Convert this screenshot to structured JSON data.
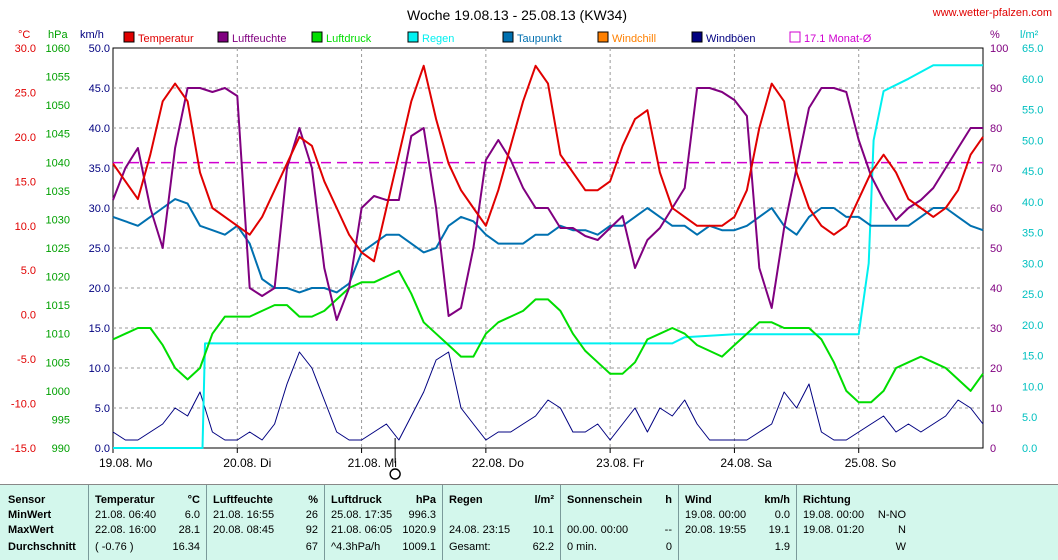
{
  "header": {
    "title": "Woche 19.08.13 - 25.08.13 (KW34)",
    "site": "www.wetter-pfalzen.com"
  },
  "units": {
    "temp": "°C",
    "hpa": "hPa",
    "kmh": "km/h",
    "pct": "%",
    "lm2": "l/m²"
  },
  "legend": [
    {
      "label": "Temperatur",
      "color": "#e00000"
    },
    {
      "label": "Luftfeuchte",
      "color": "#800080"
    },
    {
      "label": "Luftdruck",
      "color": "#00dd00"
    },
    {
      "label": "Regen",
      "color": "#00f0f0"
    },
    {
      "label": "Taupunkt",
      "color": "#0070b0"
    },
    {
      "label": "Windchill",
      "color": "#ff8000"
    },
    {
      "label": "Windböen",
      "color": "#000080"
    },
    {
      "label": "17.1 Monat-Ø",
      "color": "#d000d0",
      "hollow": true
    }
  ],
  "chart_data": {
    "type": "line",
    "x_ticks": [
      "19.08. Mo",
      "20.08. Di",
      "21.08. Mi",
      "22.08. Do",
      "23.08. Fr",
      "24.08. Sa",
      "25.08. So"
    ],
    "x_range": [
      0,
      7
    ],
    "axes": {
      "temp": {
        "range": [
          -15,
          30
        ],
        "ticks": [
          "30.0",
          "25.0",
          "20.0",
          "15.0",
          "10.0",
          "5.0",
          "0.0",
          "-5.0",
          "-10.0",
          "-15.0"
        ],
        "color": "#e00000"
      },
      "hpa": {
        "range": [
          990,
          1060
        ],
        "ticks": [
          "1060",
          "1055",
          "1050",
          "1045",
          "1040",
          "1035",
          "1030",
          "1025",
          "1020",
          "1015",
          "1010",
          "1005",
          "1000",
          "995",
          "990"
        ],
        "color": "#00a000"
      },
      "kmh": {
        "range": [
          0,
          50
        ],
        "ticks": [
          "50.0",
          "45.0",
          "40.0",
          "35.0",
          "30.0",
          "25.0",
          "20.0",
          "15.0",
          "10.0",
          "5.0",
          "0.0"
        ],
        "color": "#000080"
      },
      "pct": {
        "range": [
          0,
          100
        ],
        "ticks": [
          "100",
          "90",
          "80",
          "70",
          "60",
          "50",
          "40",
          "30",
          "20",
          "10",
          "0"
        ],
        "color": "#800080"
      },
      "lm2": {
        "range": [
          0,
          65
        ],
        "ticks": [
          "65.0",
          "60.0",
          "55.0",
          "50.0",
          "45.0",
          "40.0",
          "35.0",
          "30.0",
          "25.0",
          "20.0",
          "15.0",
          "10.0",
          "5.0",
          "0.0"
        ],
        "color": "#00c0c0"
      }
    },
    "monthly_avg_temp": 17.1,
    "series": [
      {
        "name": "Temperatur",
        "axis": "temp",
        "color": "#e00000",
        "x": [
          0,
          0.1,
          0.2,
          0.3,
          0.4,
          0.5,
          0.6,
          0.7,
          0.8,
          0.9,
          1.0,
          1.1,
          1.2,
          1.3,
          1.4,
          1.5,
          1.6,
          1.7,
          1.8,
          1.9,
          2.0,
          2.1,
          2.2,
          2.3,
          2.4,
          2.5,
          2.6,
          2.7,
          2.8,
          2.9,
          3.0,
          3.1,
          3.2,
          3.3,
          3.4,
          3.5,
          3.6,
          3.7,
          3.8,
          3.9,
          4.0,
          4.1,
          4.2,
          4.3,
          4.4,
          4.5,
          4.6,
          4.7,
          4.8,
          4.9,
          5.0,
          5.1,
          5.2,
          5.3,
          5.4,
          5.5,
          5.6,
          5.7,
          5.8,
          5.9,
          6.0,
          6.1,
          6.2,
          6.3,
          6.4,
          6.5,
          6.6,
          6.7,
          6.8,
          6.9,
          7.0
        ],
        "y": [
          17,
          15,
          13,
          18,
          24,
          26,
          24,
          16,
          12,
          11,
          10,
          9,
          11,
          14,
          17,
          20,
          19,
          15,
          12,
          9,
          7,
          6,
          12,
          18,
          24,
          28,
          22,
          17,
          14,
          12,
          10,
          14,
          19,
          24,
          28,
          26,
          18,
          16,
          14,
          14,
          15,
          19,
          22,
          23,
          16,
          12,
          11,
          10,
          10,
          10,
          11,
          14,
          21,
          26,
          24,
          16,
          12,
          10,
          9,
          10,
          13,
          16,
          18,
          16,
          13,
          12,
          11,
          12,
          14,
          18,
          20
        ]
      },
      {
        "name": "Luftfeuchte",
        "axis": "pct",
        "color": "#800080",
        "x": [
          0,
          0.1,
          0.2,
          0.3,
          0.4,
          0.5,
          0.6,
          0.7,
          0.8,
          0.9,
          1.0,
          1.1,
          1.2,
          1.3,
          1.4,
          1.5,
          1.6,
          1.7,
          1.8,
          1.9,
          2.0,
          2.1,
          2.2,
          2.3,
          2.4,
          2.5,
          2.6,
          2.7,
          2.8,
          2.9,
          3.0,
          3.1,
          3.2,
          3.3,
          3.4,
          3.5,
          3.6,
          3.7,
          3.8,
          3.9,
          4.0,
          4.1,
          4.2,
          4.3,
          4.4,
          4.5,
          4.6,
          4.7,
          4.8,
          4.9,
          5.0,
          5.1,
          5.2,
          5.3,
          5.4,
          5.5,
          5.6,
          5.7,
          5.8,
          5.9,
          6.0,
          6.1,
          6.2,
          6.3,
          6.4,
          6.5,
          6.6,
          6.7,
          6.8,
          6.9,
          7.0
        ],
        "y": [
          62,
          70,
          75,
          60,
          50,
          75,
          90,
          90,
          89,
          90,
          88,
          40,
          38,
          40,
          70,
          80,
          70,
          45,
          32,
          40,
          60,
          63,
          62,
          62,
          78,
          80,
          60,
          33,
          35,
          50,
          72,
          77,
          72,
          65,
          60,
          60,
          55,
          55,
          53,
          52,
          55,
          58,
          45,
          52,
          55,
          60,
          65,
          90,
          90,
          89,
          87,
          83,
          45,
          35,
          55,
          70,
          85,
          90,
          90,
          89,
          77,
          68,
          62,
          57,
          60,
          62,
          65,
          70,
          75,
          80,
          80
        ]
      },
      {
        "name": "Luftdruck",
        "axis": "hpa",
        "color": "#00dd00",
        "x": [
          0,
          0.1,
          0.2,
          0.3,
          0.4,
          0.5,
          0.6,
          0.7,
          0.8,
          0.9,
          1.0,
          1.1,
          1.2,
          1.3,
          1.4,
          1.5,
          1.6,
          1.7,
          1.8,
          1.9,
          2.0,
          2.1,
          2.2,
          2.3,
          2.4,
          2.5,
          2.6,
          2.7,
          2.8,
          2.9,
          3.0,
          3.1,
          3.2,
          3.3,
          3.4,
          3.5,
          3.6,
          3.7,
          3.8,
          3.9,
          4.0,
          4.1,
          4.2,
          4.3,
          4.4,
          4.5,
          4.6,
          4.7,
          4.8,
          4.9,
          5.0,
          5.1,
          5.2,
          5.3,
          5.4,
          5.5,
          5.6,
          5.7,
          5.8,
          5.9,
          6.0,
          6.1,
          6.2,
          6.3,
          6.4,
          6.5,
          6.6,
          6.7,
          6.8,
          6.9,
          7.0
        ],
        "y": [
          1009,
          1010,
          1011,
          1011,
          1008,
          1004,
          1002,
          1004,
          1010,
          1013,
          1013,
          1013,
          1014,
          1015,
          1015,
          1013,
          1013,
          1014,
          1016,
          1018,
          1019,
          1019,
          1020,
          1021,
          1017,
          1012,
          1010,
          1008,
          1006,
          1006,
          1010,
          1012,
          1013,
          1014,
          1016,
          1016,
          1014,
          1010,
          1007,
          1005,
          1003,
          1003,
          1005,
          1009,
          1010,
          1011,
          1010,
          1008,
          1007,
          1006,
          1008,
          1010,
          1012,
          1012,
          1011,
          1011,
          1011,
          1009,
          1005,
          1000,
          998,
          998,
          1000,
          1004,
          1005,
          1006,
          1005,
          1004,
          1002,
          1000,
          1003
        ]
      },
      {
        "name": "Regen",
        "axis": "lm2",
        "color": "#00f0f0",
        "x": [
          0,
          0.5,
          0.6,
          0.72,
          0.74,
          1.0,
          2.0,
          3.0,
          4.0,
          4.5,
          4.6,
          5.0,
          5.5,
          5.8,
          6.0,
          6.08,
          6.12,
          6.2,
          6.4,
          6.6,
          7.0
        ],
        "y": [
          0,
          0,
          0,
          0,
          17,
          17,
          17,
          17,
          17,
          17,
          18,
          18.5,
          18.5,
          18.5,
          18.5,
          30,
          50,
          58,
          60,
          62.2,
          62.2
        ]
      },
      {
        "name": "Taupunkt",
        "axis": "temp",
        "color": "#0070b0",
        "x": [
          0,
          0.1,
          0.2,
          0.3,
          0.4,
          0.5,
          0.6,
          0.7,
          0.8,
          0.9,
          1.0,
          1.1,
          1.2,
          1.3,
          1.4,
          1.5,
          1.6,
          1.7,
          1.8,
          1.9,
          2.0,
          2.1,
          2.2,
          2.3,
          2.4,
          2.5,
          2.6,
          2.7,
          2.8,
          2.9,
          3.0,
          3.1,
          3.2,
          3.3,
          3.4,
          3.5,
          3.6,
          3.7,
          3.8,
          3.9,
          4.0,
          4.1,
          4.2,
          4.3,
          4.4,
          4.5,
          4.6,
          4.7,
          4.8,
          4.9,
          5.0,
          5.1,
          5.2,
          5.3,
          5.4,
          5.5,
          5.6,
          5.7,
          5.8,
          5.9,
          6.0,
          6.1,
          6.2,
          6.3,
          6.4,
          6.5,
          6.6,
          6.7,
          6.8,
          6.9,
          7.0
        ],
        "y": [
          11,
          10.5,
          10,
          11,
          12,
          13,
          12.5,
          10,
          9.5,
          9,
          10,
          8,
          4,
          3,
          3,
          2.5,
          3,
          3,
          2.5,
          3.5,
          7,
          8,
          9,
          9,
          8,
          7,
          7.5,
          10,
          11,
          10.5,
          9,
          8,
          8,
          8,
          9,
          9,
          10,
          9.5,
          9.5,
          9,
          10,
          10,
          11,
          12,
          11,
          10,
          10,
          9,
          10,
          9.5,
          9.5,
          10,
          11,
          12,
          10,
          9,
          11,
          12,
          12,
          11,
          11,
          10,
          10,
          10,
          10,
          11,
          12,
          12,
          11,
          10,
          9.5
        ]
      },
      {
        "name": "Windböen",
        "axis": "kmh",
        "color": "#000080",
        "x": [
          0,
          0.1,
          0.2,
          0.3,
          0.4,
          0.5,
          0.6,
          0.7,
          0.8,
          0.9,
          1.0,
          1.1,
          1.2,
          1.3,
          1.4,
          1.5,
          1.6,
          1.7,
          1.8,
          1.9,
          2.0,
          2.1,
          2.2,
          2.3,
          2.4,
          2.5,
          2.6,
          2.7,
          2.8,
          2.9,
          3.0,
          3.1,
          3.2,
          3.3,
          3.4,
          3.5,
          3.6,
          3.7,
          3.8,
          3.9,
          4.0,
          4.1,
          4.2,
          4.3,
          4.4,
          4.5,
          4.6,
          4.7,
          4.8,
          4.9,
          5.0,
          5.1,
          5.2,
          5.3,
          5.4,
          5.5,
          5.6,
          5.7,
          5.8,
          5.9,
          6.0,
          6.1,
          6.2,
          6.3,
          6.4,
          6.5,
          6.6,
          6.7,
          6.8,
          6.9,
          7.0
        ],
        "y": [
          2,
          1,
          1,
          2,
          3,
          5,
          4,
          7,
          2,
          1,
          1,
          2,
          1,
          3,
          8,
          12,
          10,
          6,
          2,
          1,
          1,
          2,
          3,
          1,
          4,
          7,
          11,
          12,
          5,
          3,
          1,
          2,
          2,
          3,
          4,
          6,
          5,
          2,
          2,
          3,
          1,
          3,
          5,
          2,
          5,
          4,
          6,
          3,
          1,
          1,
          1,
          1,
          2,
          3,
          7,
          5,
          8,
          2,
          1,
          1,
          2,
          3,
          4,
          2,
          3,
          2,
          3,
          4,
          6,
          5,
          3
        ]
      }
    ]
  },
  "table": {
    "row_labels": [
      "Sensor",
      "MinWert",
      "MaxWert",
      "Durchschnitt"
    ],
    "columns": [
      {
        "name": "Temperatur",
        "unit": "°C",
        "rows": [
          [
            "21.08. 06:40",
            "6.0"
          ],
          [
            "22.08. 16:00",
            "28.1"
          ],
          [
            "( -0.76 )",
            "16.34"
          ]
        ]
      },
      {
        "name": "Luftfeuchte",
        "unit": "%",
        "rows": [
          [
            "21.08. 16:55",
            "26"
          ],
          [
            "20.08. 08:45",
            "92"
          ],
          [
            "",
            "67"
          ]
        ]
      },
      {
        "name": "Luftdruck",
        "unit": "hPa",
        "rows": [
          [
            "25.08. 17:35",
            "996.3"
          ],
          [
            "21.08. 06:05",
            "1020.9"
          ],
          [
            "^4.3hPa/h",
            "1009.1"
          ]
        ]
      },
      {
        "name": "Regen",
        "unit": "l/m²",
        "rows": [
          [
            "",
            ""
          ],
          [
            "24.08. 23:15",
            "10.1"
          ],
          [
            "Gesamt:",
            "62.2"
          ]
        ]
      },
      {
        "name": "Sonnenschein",
        "unit": "h",
        "rows": [
          [
            "",
            ""
          ],
          [
            "00.00. 00:00",
            "--"
          ],
          [
            "0 min.",
            "0"
          ]
        ]
      },
      {
        "name": "Wind",
        "unit": "km/h",
        "rows": [
          [
            "19.08. 00:00",
            "0.0"
          ],
          [
            "20.08. 19:55",
            "19.1"
          ],
          [
            "",
            "1.9"
          ]
        ]
      },
      {
        "name": "Richtung",
        "unit": "",
        "rows": [
          [
            "19.08. 00:00",
            "N-NO"
          ],
          [
            "19.08. 01:20",
            "N"
          ],
          [
            "",
            "W"
          ]
        ]
      }
    ]
  }
}
